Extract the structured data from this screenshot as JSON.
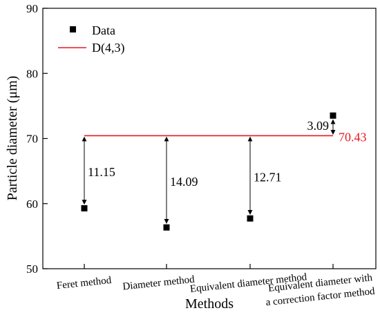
{
  "chart_data": {
    "type": "scatter",
    "xlabel": "Methods",
    "ylabel": "Particle diameter (μm)",
    "ylim": [
      50,
      90
    ],
    "yticks": [
      50,
      60,
      70,
      80,
      90
    ],
    "categories": [
      [
        "Feret method"
      ],
      [
        "Diameter method"
      ],
      [
        "Equivalent diameter method"
      ],
      [
        "Equivalent diameter with",
        "a correction factor method"
      ]
    ],
    "series": [
      {
        "name": "Data",
        "values": [
          59.28,
          56.34,
          57.72,
          73.52
        ],
        "marker": "square",
        "color": "#000000"
      }
    ],
    "reference_line": {
      "name": "D(4,3)",
      "value": 70.43,
      "label": "70.43",
      "color": "#e8191f"
    },
    "differences": [
      "11.15",
      "14.09",
      "12.71",
      "3.09"
    ],
    "legend": {
      "position": "top-left"
    }
  }
}
